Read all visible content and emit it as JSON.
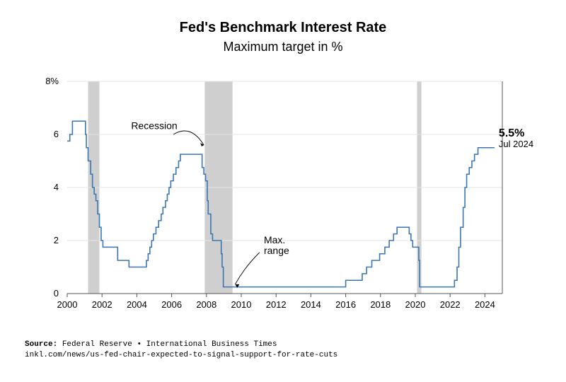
{
  "chart": {
    "type": "line-step",
    "title": "Fed's Benchmark Interest Rate",
    "subtitle": "Maximum target in %",
    "title_fontsize": 20,
    "subtitle_fontsize": 18,
    "background_color": "#ffffff",
    "grid_color": "#e6e6e6",
    "axis_color": "#555555",
    "line_color": "#3b76b3",
    "line_width": 1.6,
    "recession_fill": "#cfcfcf",
    "xlim": [
      2000,
      2025
    ],
    "ylim": [
      0,
      8
    ],
    "xtick_step": 2,
    "ytick_step": 2,
    "xticks": [
      "2000",
      "2002",
      "2004",
      "2006",
      "2008",
      "2010",
      "2012",
      "2014",
      "2016",
      "2018",
      "2020",
      "2022",
      "2024"
    ],
    "yticks": [
      "0",
      "2",
      "4",
      "6",
      "8%"
    ],
    "recessions": [
      {
        "start": 2001.2,
        "end": 2001.85
      },
      {
        "start": 2007.9,
        "end": 2009.5
      },
      {
        "start": 2020.1,
        "end": 2020.35
      }
    ],
    "series": [
      {
        "t": 2000.0,
        "r": 5.75
      },
      {
        "t": 2000.15,
        "r": 6.0
      },
      {
        "t": 2000.3,
        "r": 6.5
      },
      {
        "t": 2001.0,
        "r": 6.5
      },
      {
        "t": 2001.05,
        "r": 6.0
      },
      {
        "t": 2001.1,
        "r": 5.5
      },
      {
        "t": 2001.2,
        "r": 5.0
      },
      {
        "t": 2001.35,
        "r": 4.5
      },
      {
        "t": 2001.45,
        "r": 4.0
      },
      {
        "t": 2001.55,
        "r": 3.75
      },
      {
        "t": 2001.65,
        "r": 3.5
      },
      {
        "t": 2001.75,
        "r": 3.0
      },
      {
        "t": 2001.85,
        "r": 2.5
      },
      {
        "t": 2001.95,
        "r": 2.0
      },
      {
        "t": 2002.05,
        "r": 1.75
      },
      {
        "t": 2002.85,
        "r": 1.75
      },
      {
        "t": 2002.9,
        "r": 1.25
      },
      {
        "t": 2003.5,
        "r": 1.25
      },
      {
        "t": 2003.55,
        "r": 1.0
      },
      {
        "t": 2004.5,
        "r": 1.0
      },
      {
        "t": 2004.55,
        "r": 1.25
      },
      {
        "t": 2004.65,
        "r": 1.5
      },
      {
        "t": 2004.75,
        "r": 1.75
      },
      {
        "t": 2004.85,
        "r": 2.0
      },
      {
        "t": 2004.95,
        "r": 2.25
      },
      {
        "t": 2005.1,
        "r": 2.5
      },
      {
        "t": 2005.25,
        "r": 2.75
      },
      {
        "t": 2005.4,
        "r": 3.0
      },
      {
        "t": 2005.5,
        "r": 3.25
      },
      {
        "t": 2005.65,
        "r": 3.5
      },
      {
        "t": 2005.75,
        "r": 3.75
      },
      {
        "t": 2005.85,
        "r": 4.0
      },
      {
        "t": 2005.95,
        "r": 4.25
      },
      {
        "t": 2006.1,
        "r": 4.5
      },
      {
        "t": 2006.25,
        "r": 4.75
      },
      {
        "t": 2006.4,
        "r": 5.0
      },
      {
        "t": 2006.5,
        "r": 5.25
      },
      {
        "t": 2007.7,
        "r": 5.25
      },
      {
        "t": 2007.75,
        "r": 4.75
      },
      {
        "t": 2007.85,
        "r": 4.5
      },
      {
        "t": 2007.95,
        "r": 4.25
      },
      {
        "t": 2008.05,
        "r": 3.5
      },
      {
        "t": 2008.1,
        "r": 3.0
      },
      {
        "t": 2008.25,
        "r": 2.25
      },
      {
        "t": 2008.35,
        "r": 2.0
      },
      {
        "t": 2008.8,
        "r": 2.0
      },
      {
        "t": 2008.85,
        "r": 1.5
      },
      {
        "t": 2008.9,
        "r": 1.0
      },
      {
        "t": 2008.97,
        "r": 0.25
      },
      {
        "t": 2015.95,
        "r": 0.25
      },
      {
        "t": 2016.0,
        "r": 0.5
      },
      {
        "t": 2016.95,
        "r": 0.75
      },
      {
        "t": 2017.2,
        "r": 1.0
      },
      {
        "t": 2017.5,
        "r": 1.25
      },
      {
        "t": 2017.95,
        "r": 1.5
      },
      {
        "t": 2018.25,
        "r": 1.75
      },
      {
        "t": 2018.5,
        "r": 2.0
      },
      {
        "t": 2018.75,
        "r": 2.25
      },
      {
        "t": 2018.95,
        "r": 2.5
      },
      {
        "t": 2019.6,
        "r": 2.5
      },
      {
        "t": 2019.65,
        "r": 2.25
      },
      {
        "t": 2019.75,
        "r": 2.0
      },
      {
        "t": 2019.85,
        "r": 1.75
      },
      {
        "t": 2020.1,
        "r": 1.75
      },
      {
        "t": 2020.2,
        "r": 1.25
      },
      {
        "t": 2020.25,
        "r": 0.25
      },
      {
        "t": 2022.2,
        "r": 0.25
      },
      {
        "t": 2022.25,
        "r": 0.5
      },
      {
        "t": 2022.4,
        "r": 1.0
      },
      {
        "t": 2022.5,
        "r": 1.75
      },
      {
        "t": 2022.6,
        "r": 2.5
      },
      {
        "t": 2022.75,
        "r": 3.25
      },
      {
        "t": 2022.85,
        "r": 4.0
      },
      {
        "t": 2022.95,
        "r": 4.5
      },
      {
        "t": 2023.1,
        "r": 4.75
      },
      {
        "t": 2023.25,
        "r": 5.0
      },
      {
        "t": 2023.4,
        "r": 5.25
      },
      {
        "t": 2023.6,
        "r": 5.5
      },
      {
        "t": 2024.55,
        "r": 5.5
      }
    ],
    "annotations": {
      "recession_label": "Recession",
      "maxrange_label": "Max.\nrange",
      "current_value": "5.5%",
      "current_date": "Jul 2024"
    }
  },
  "source": {
    "label": "Source:",
    "text": "Federal Reserve • International Business Times",
    "url": "inkl.com/news/us-fed-chair-expected-to-signal-support-for-rate-cuts"
  }
}
